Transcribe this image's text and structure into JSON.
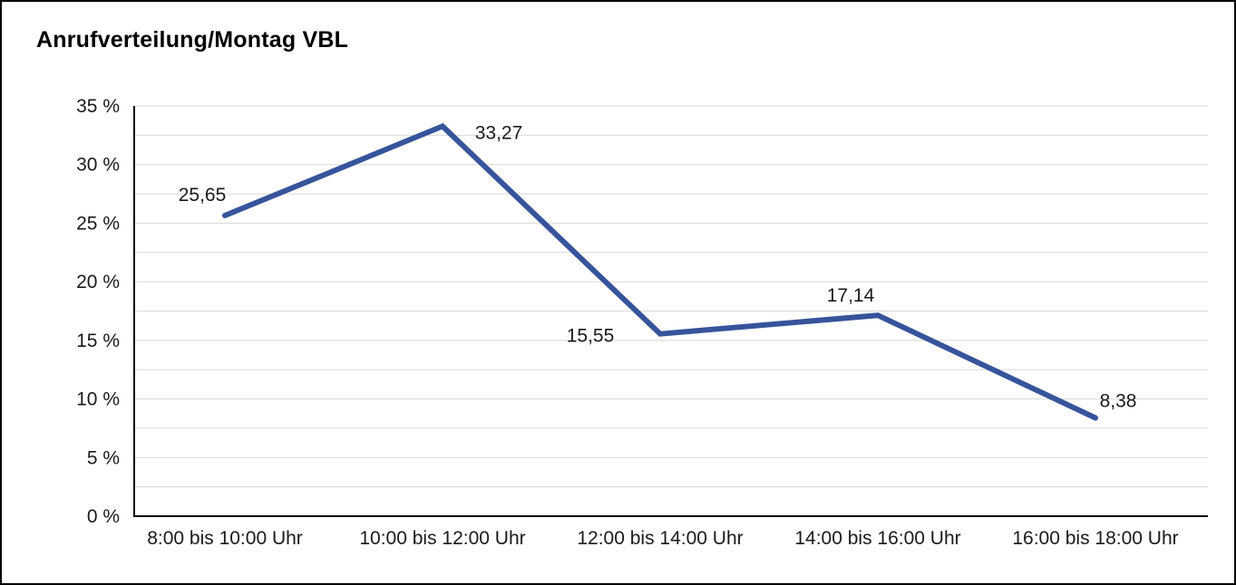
{
  "chart_data": {
    "type": "line",
    "title": "Anrufverteilung/Montag VBL",
    "categories": [
      "8:00 bis 10:00 Uhr",
      "10:00 bis 12:00 Uhr",
      "12:00 bis 14:00 Uhr",
      "14:00 bis 16:00 Uhr",
      "16:00 bis 18:00 Uhr"
    ],
    "values": [
      25.65,
      33.27,
      15.55,
      17.14,
      8.38
    ],
    "value_labels": [
      "25,65",
      "33,27",
      "15,55",
      "17,14",
      "8,38"
    ],
    "xlabel": "",
    "ylabel": "",
    "ylim": [
      0,
      35
    ],
    "y_tick_step": 5,
    "y_minor_step": 2.5,
    "y_tick_labels": [
      "0 %",
      "5 %",
      "10 %",
      "15 %",
      "20 %",
      "25 %",
      "30 %",
      "35 %"
    ],
    "grid": true,
    "legend": "none",
    "line_color": "#37549B",
    "grid_color": "#D8D8D8",
    "axis_color": "#000000",
    "label_color": "#1A1A1A"
  }
}
